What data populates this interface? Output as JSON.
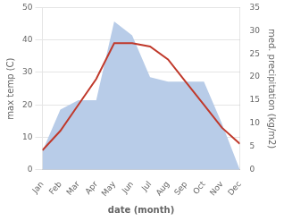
{
  "chart_data": {
    "type": "line",
    "xlabel": "date (month)",
    "ylabel": "max temp (C)",
    "y2label": "med. precipitation (kg/m2)",
    "categories": [
      "Jan",
      "Feb",
      "Mar",
      "Apr",
      "May",
      "Jun",
      "Jul",
      "Aug",
      "Sep",
      "Oct",
      "Nov",
      "Dec"
    ],
    "series": [
      {
        "type": "line",
        "color": "#c0392b",
        "values": [
          6,
          12,
          20,
          28,
          39,
          39,
          38,
          34,
          27,
          20,
          13,
          8
        ]
      },
      {
        "type": "area",
        "color": "#b8cce8",
        "axis": "y2",
        "values": [
          4,
          13,
          15,
          15,
          32,
          29,
          20,
          19,
          19,
          19,
          10,
          0
        ]
      }
    ],
    "ylim": [
      0,
      50
    ],
    "yticks": [
      0,
      10,
      20,
      30,
      40,
      50
    ],
    "y2lim": [
      0,
      35
    ],
    "y2ticks": [
      0,
      5,
      10,
      15,
      20,
      25,
      30,
      35
    ],
    "grid": "y"
  }
}
